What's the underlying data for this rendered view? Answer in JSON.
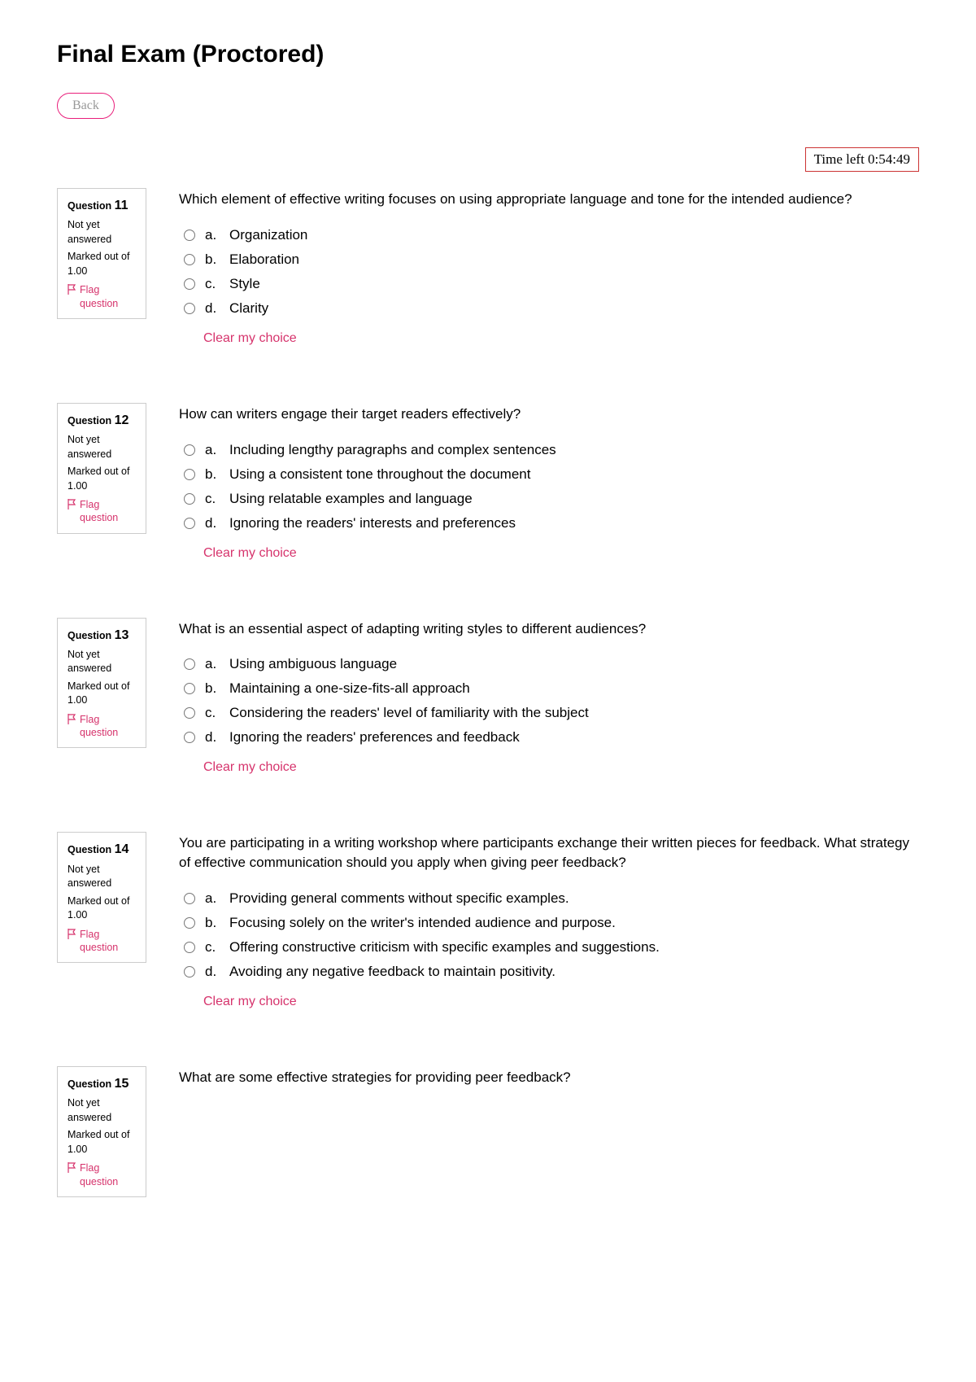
{
  "page_title": "Final Exam (Proctored)",
  "back_label": "Back",
  "timer_label": "Time left 0:54:49",
  "question_label": "Question",
  "status_text": "Not yet answered",
  "marks_text": "Marked out of 1.00",
  "flag_text": "Flag question",
  "clear_text": "Clear my choice",
  "accent_color": "#d6336c",
  "questions": [
    {
      "num": "11",
      "text": "Which element of effective writing focuses on using appropriate language and tone for the intended audience?",
      "opts": [
        {
          "letter": "a.",
          "text": "Organization"
        },
        {
          "letter": "b.",
          "text": "Elaboration"
        },
        {
          "letter": "c.",
          "text": "Style"
        },
        {
          "letter": "d.",
          "text": "Clarity"
        }
      ]
    },
    {
      "num": "12",
      "text": "How can writers engage their target readers effectively?",
      "opts": [
        {
          "letter": "a.",
          "text": "Including lengthy paragraphs and complex sentences"
        },
        {
          "letter": "b.",
          "text": "Using a consistent tone throughout the document"
        },
        {
          "letter": "c.",
          "text": "Using relatable examples and language"
        },
        {
          "letter": "d.",
          "text": "Ignoring the readers' interests and preferences"
        }
      ]
    },
    {
      "num": "13",
      "text": "What is an essential aspect of adapting writing styles to different audiences?",
      "opts": [
        {
          "letter": "a.",
          "text": "Using ambiguous language"
        },
        {
          "letter": "b.",
          "text": "Maintaining a one-size-fits-all approach"
        },
        {
          "letter": "c.",
          "text": "Considering the readers' level of familiarity with the subject"
        },
        {
          "letter": "d.",
          "text": "Ignoring the readers' preferences and feedback"
        }
      ]
    },
    {
      "num": "14",
      "text": "You are participating in a writing workshop where participants exchange their written pieces for feedback. What strategy of effective communication should you apply when giving peer feedback?",
      "opts": [
        {
          "letter": "a.",
          "text": "Providing general comments without specific examples."
        },
        {
          "letter": "b.",
          "text": "Focusing solely on the writer's intended audience and purpose."
        },
        {
          "letter": "c.",
          "text": "Offering constructive criticism with specific examples and suggestions."
        },
        {
          "letter": "d.",
          "text": "Avoiding any negative feedback to maintain positivity."
        }
      ]
    },
    {
      "num": "15",
      "text": "What are some effective strategies for providing peer feedback?",
      "opts": []
    }
  ]
}
